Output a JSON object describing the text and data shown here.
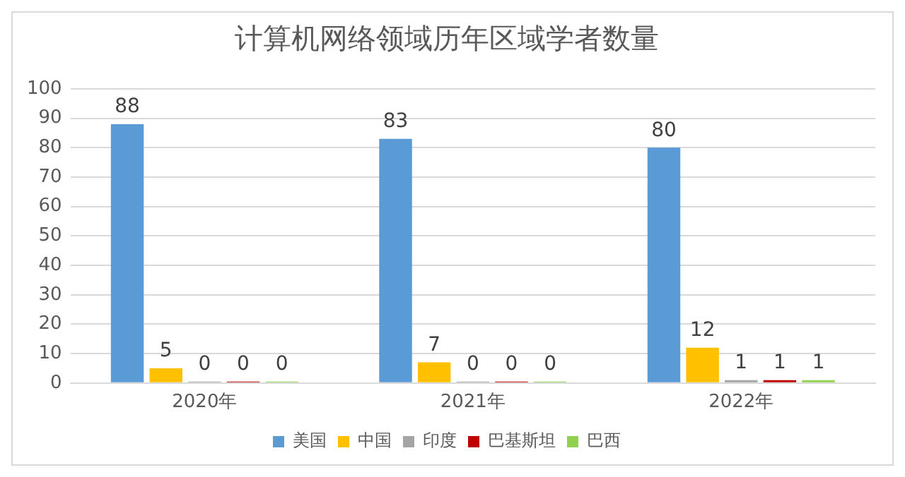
{
  "chart_data": {
    "type": "bar",
    "title": "计算机网络领域历年区域学者数量",
    "categories": [
      "2020年",
      "2021年",
      "2022年"
    ],
    "series": [
      {
        "name": "美国",
        "color": "#5b9bd5",
        "values": [
          88,
          83,
          80
        ]
      },
      {
        "name": "中国",
        "color": "#ffc000",
        "values": [
          5,
          7,
          12
        ]
      },
      {
        "name": "印度",
        "color": "#a5a5a5",
        "values": [
          0,
          0,
          1
        ]
      },
      {
        "name": "巴基斯坦",
        "color": "#c00000",
        "values": [
          0,
          0,
          1
        ]
      },
      {
        "name": "巴西",
        "color": "#92d050",
        "values": [
          0,
          0,
          1
        ]
      }
    ],
    "ylim": [
      0,
      100
    ],
    "yticks": [
      0,
      10,
      20,
      30,
      40,
      50,
      60,
      70,
      80,
      90,
      100
    ],
    "grid": "y",
    "legend": "bottom",
    "data_labels": true
  }
}
